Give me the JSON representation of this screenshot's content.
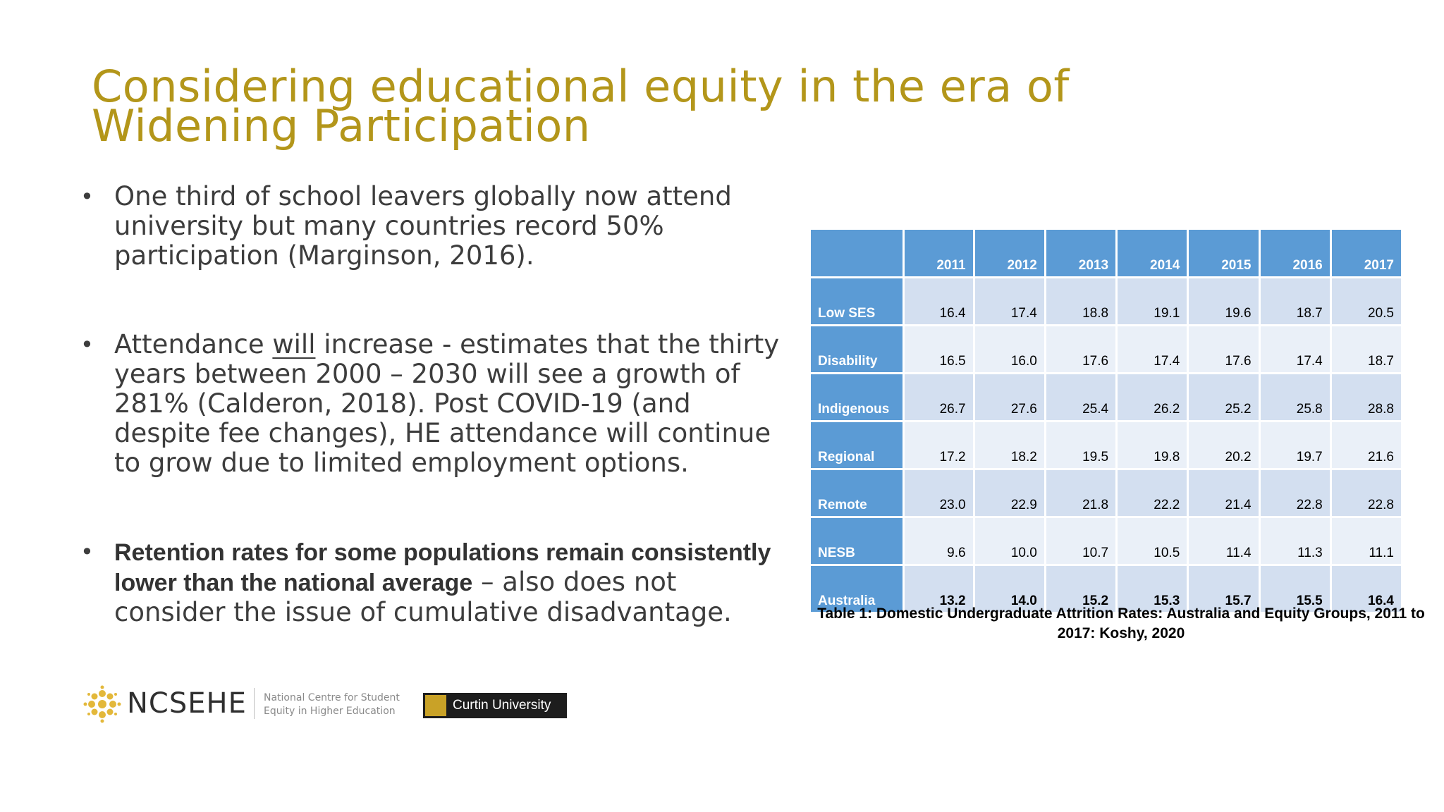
{
  "title": "Considering educational equity in the era of Widening Participation",
  "bullets": [
    {
      "text": "One third of school leavers globally now attend university but many countries record 50% participation (Marginson, 2016)."
    },
    {
      "before": "Attendance ",
      "underlined": "will",
      "after": " increase - estimates that the thirty years between 2000 – 2030 will see a growth of 281% (Calderon, 2018). Post COVID-19 (and despite fee changes), HE attendance will continue to grow due to limited employment options."
    },
    {
      "bold": "Retention rates for some populations remain  consistently lower than the national average",
      "rest": " – also does not consider the issue of cumulative disadvantage."
    }
  ],
  "table": {
    "years": [
      "2011",
      "2012",
      "2013",
      "2014",
      "2015",
      "2016",
      "2017"
    ],
    "rows": [
      {
        "label": "Low SES",
        "values": [
          "16.4",
          "17.4",
          "18.8",
          "19.1",
          "19.6",
          "18.7",
          "20.5"
        ]
      },
      {
        "label": "Disability",
        "values": [
          "16.5",
          "16.0",
          "17.6",
          "17.4",
          "17.6",
          "17.4",
          "18.7"
        ]
      },
      {
        "label": "Indigenous",
        "values": [
          "26.7",
          "27.6",
          "25.4",
          "26.2",
          "25.2",
          "25.8",
          "28.8"
        ]
      },
      {
        "label": "Regional",
        "values": [
          "17.2",
          "18.2",
          "19.5",
          "19.8",
          "20.2",
          "19.7",
          "21.6"
        ]
      },
      {
        "label": "Remote",
        "values": [
          "23.0",
          "22.9",
          "21.8",
          "22.2",
          "21.4",
          "22.8",
          "22.8"
        ]
      },
      {
        "label": "NESB",
        "values": [
          "9.6",
          "10.0",
          "10.7",
          "10.5",
          "11.4",
          "11.3",
          "11.1"
        ]
      },
      {
        "label": "Australia",
        "values": [
          "13.2",
          "14.0",
          "15.2",
          "15.3",
          "15.7",
          "15.5",
          "16.4"
        ]
      }
    ],
    "caption": "Table 1: Domestic Undergraduate Attrition Rates: Australia and Equity Groups, 2011 to 2017: Koshy, 2020"
  },
  "logos": {
    "ncsehe_name": "NCSEHE",
    "ncsehe_tagline": "National Centre for Student Equity in Higher Education",
    "curtin_name": "Curtin University"
  },
  "colors": {
    "title": "#b3961a",
    "header_blue": "#5b9bd5",
    "row_dark": "#d3dff0",
    "row_light": "#eaf0f8"
  }
}
